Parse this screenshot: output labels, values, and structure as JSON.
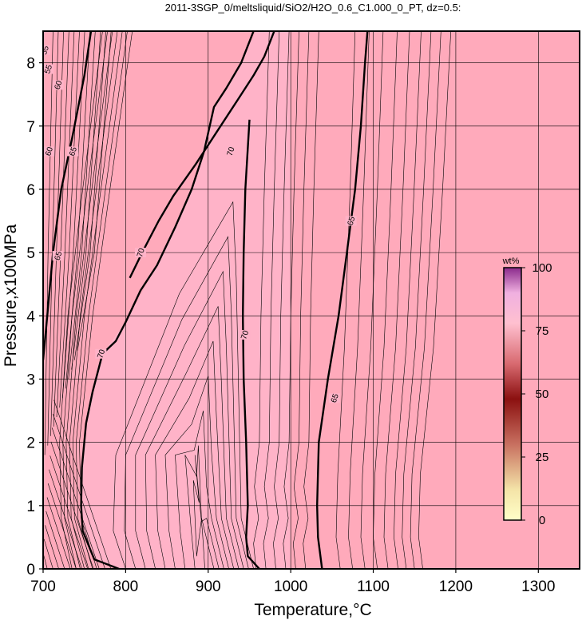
{
  "chart_data": {
    "type": "contour",
    "title": "2011-3SGP_0/meltsliquid/SiO2/H2O_0.6_C1.000_0_PT, dz=0.5:",
    "xlabel": "Temperature,°C",
    "ylabel": "Pressure,x100MPa",
    "xlim": [
      700,
      1350
    ],
    "ylim": [
      0,
      8.5
    ],
    "x_ticks": [
      "700",
      "800",
      "900",
      "1000",
      "1100",
      "1200",
      "1300"
    ],
    "y_ticks": [
      "0",
      "1",
      "2",
      "3",
      "4",
      "5",
      "6",
      "7",
      "8"
    ],
    "grid": true,
    "background_color": "#ffaabb",
    "inner_region_color": "#ffb3c8",
    "colorbar": {
      "label": "wt%",
      "min": 0,
      "max": 100,
      "ticks": [
        "0",
        "25",
        "50",
        "75",
        "100"
      ],
      "placement": "right",
      "colors": [
        "#ffffcc",
        "#8b0a0a",
        "#ffb3c8",
        "#a82a9a"
      ]
    },
    "contour_labels": [
      {
        "text": "55",
        "x": 702,
        "y": 8.2
      },
      {
        "text": "55",
        "x": 706,
        "y": 7.9
      },
      {
        "text": "60",
        "x": 718,
        "y": 7.65
      },
      {
        "text": "60",
        "x": 707,
        "y": 6.6
      },
      {
        "text": "65",
        "x": 736,
        "y": 6.6
      },
      {
        "text": "65",
        "x": 718,
        "y": 4.95
      },
      {
        "text": "70",
        "x": 770,
        "y": 3.4
      },
      {
        "text": "70",
        "x": 818,
        "y": 5.0
      },
      {
        "text": "70",
        "x": 927,
        "y": 6.6
      },
      {
        "text": "70",
        "x": 944,
        "y": 3.7
      },
      {
        "text": "65",
        "x": 1073,
        "y": 5.5
      },
      {
        "text": "65",
        "x": 1053,
        "y": 2.7
      }
    ],
    "main_contours": [
      {
        "level": 65,
        "points": [
          [
            700,
            3.3
          ],
          [
            705,
            4.0
          ],
          [
            712,
            5.0
          ],
          [
            722,
            6.0
          ],
          [
            735,
            6.8
          ],
          [
            750,
            7.8
          ],
          [
            758,
            8.5
          ]
        ]
      },
      {
        "level": 70,
        "points": [
          [
            792,
            0
          ],
          [
            762,
            0.15
          ],
          [
            748,
            0.6
          ],
          [
            746,
            1.0
          ],
          [
            747,
            1.6
          ],
          [
            752,
            2.3
          ],
          [
            760,
            2.8
          ],
          [
            772,
            3.4
          ],
          [
            788,
            3.6
          ],
          [
            800,
            3.9
          ],
          [
            818,
            4.4
          ],
          [
            838,
            4.8
          ],
          [
            860,
            5.4
          ],
          [
            880,
            6.0
          ],
          [
            895,
            6.6
          ],
          [
            907,
            7.3
          ],
          [
            922,
            7.6
          ],
          [
            940,
            8.0
          ],
          [
            955,
            8.5
          ]
        ]
      },
      {
        "level": 70,
        "points": [
          [
            805,
            4.6
          ],
          [
            820,
            5.0
          ],
          [
            840,
            5.5
          ],
          [
            858,
            5.9
          ],
          [
            885,
            6.4
          ],
          [
            910,
            6.9
          ],
          [
            935,
            7.4
          ],
          [
            955,
            7.8
          ],
          [
            968,
            8.1
          ],
          [
            980,
            8.5
          ]
        ]
      },
      {
        "level": 70,
        "points": [
          [
            950,
            7.1
          ],
          [
            945,
            6.0
          ],
          [
            943,
            5.0
          ],
          [
            942,
            4.0
          ],
          [
            943,
            3.0
          ],
          [
            946,
            2.0
          ],
          [
            948,
            1.0
          ],
          [
            946,
            0.5
          ],
          [
            948,
            0.2
          ],
          [
            962,
            0
          ]
        ]
      },
      {
        "level": 65,
        "points": [
          [
            1038,
            0
          ],
          [
            1033,
            0.5
          ],
          [
            1032,
            1.0
          ],
          [
            1034,
            2.0
          ],
          [
            1045,
            3.0
          ],
          [
            1058,
            4.0
          ],
          [
            1068,
            5.0
          ],
          [
            1078,
            6.0
          ],
          [
            1085,
            7.0
          ],
          [
            1090,
            8.0
          ],
          [
            1093,
            8.5
          ]
        ]
      }
    ]
  }
}
